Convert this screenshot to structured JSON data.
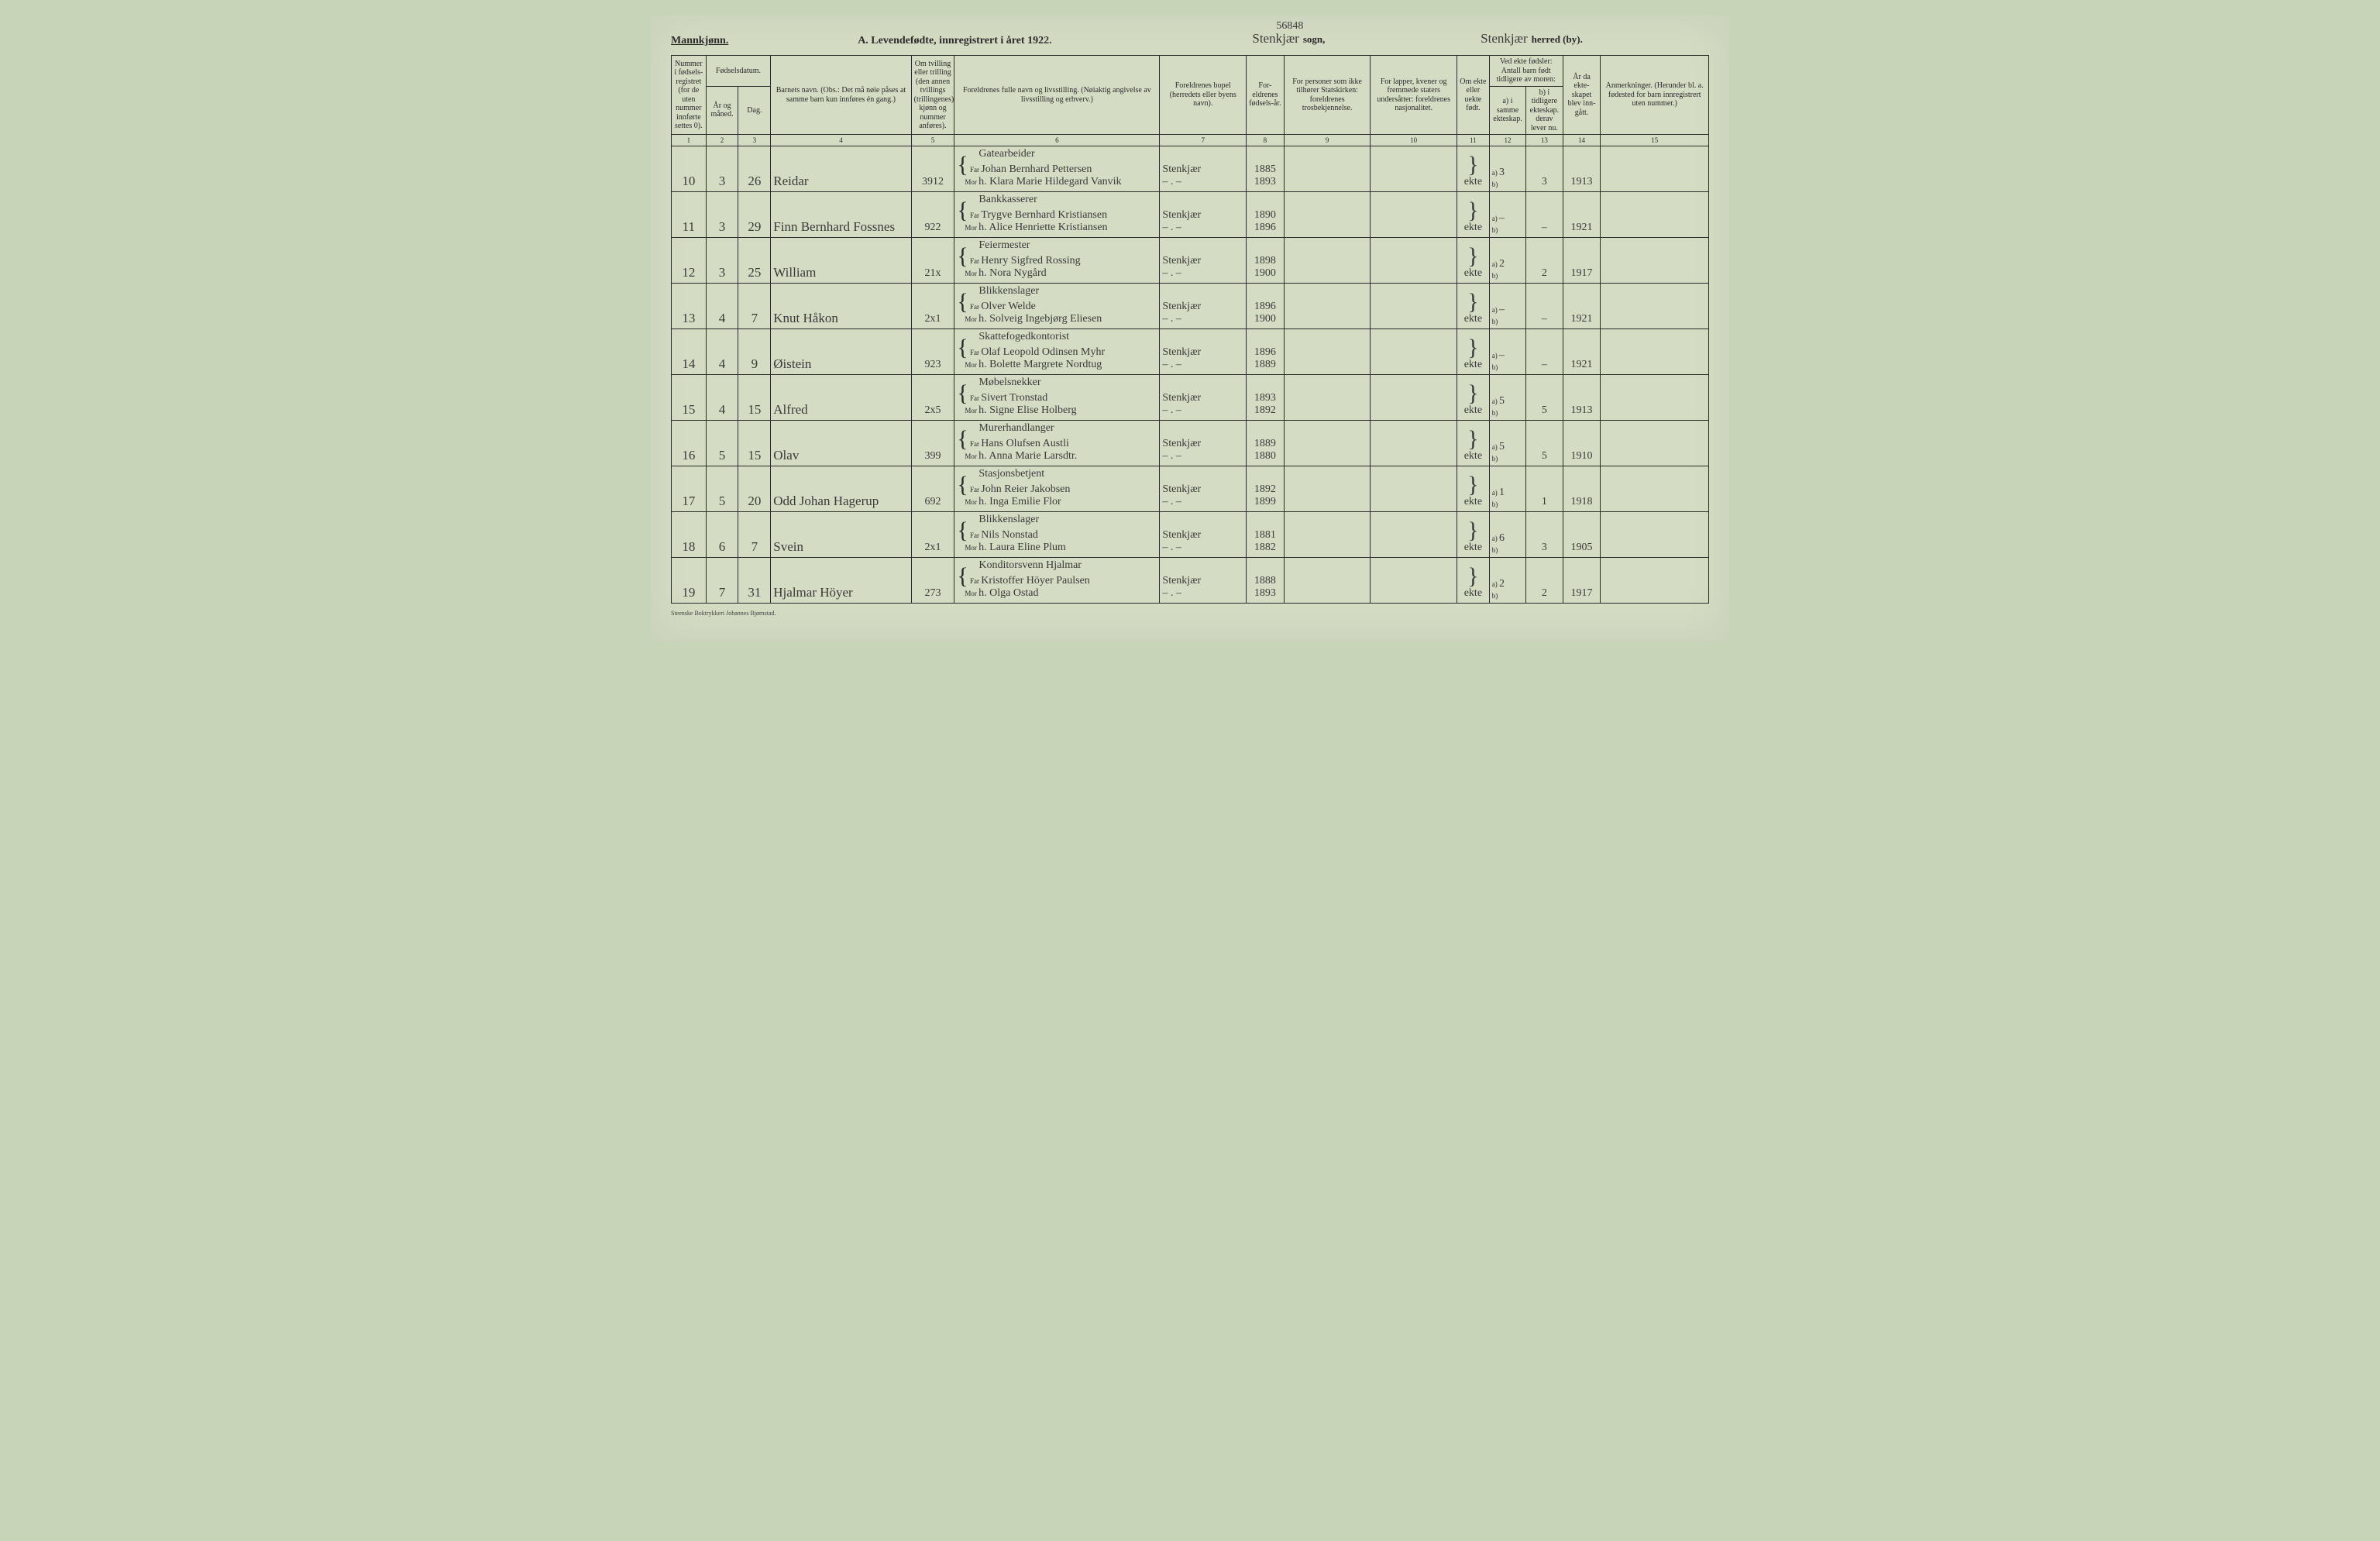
{
  "top_number": "56848",
  "header": {
    "gender": "Mannkjønn.",
    "title_a": "A.  Levendefødte, innregistrert i året 192",
    "year_suffix": "2.",
    "sogn_hand": "Stenkjær",
    "sogn_label": "sogn,",
    "herred_hand": "Stenkjær",
    "herred_label": "herred (by)."
  },
  "columns": {
    "1": "Nummer i fødsels-registret (for de uten nummer innførte settes 0).",
    "2_group": "Fødselsdatum.",
    "2": "År og måned.",
    "3": "Dag.",
    "4": "Barnets navn.\n(Obs.: Det må nøie påses at samme barn kun innføres én gang.)",
    "5": "Om tvilling eller trilling (den annen tvillings (trillingenes) kjønn og nummer anføres).",
    "6": "Foreldrenes fulle navn og livsstilling.\n(Nøiaktig angivelse av livsstilling og erhverv.)",
    "7": "Foreldrenes bopel\n(herredets eller byens navn).",
    "8": "For-eldrenes fødsels-år.",
    "9": "For personer som ikke tilhører Statskirken: foreldrenes trosbekjennelse.",
    "10": "For lapper, kvener og fremmede staters undersåtter: foreldrenes nasjonalitet.",
    "11": "Om ekte eller uekte født.",
    "12_group": "Ved ekte fødsler: Antall barn født tidligere av moren:",
    "12": "a) i samme ekteskap.",
    "13": "b) i tidligere ekteskap.  derav lever nu.",
    "14": "År da ekte-skapet blev inn-gått.",
    "15": "Anmerkninger.\n(Herunder bl. a. fødested for barn innregistrert uten nummer.)"
  },
  "colnums": [
    "1",
    "2",
    "3",
    "4",
    "5",
    "6",
    "7",
    "8",
    "9",
    "10",
    "11",
    "12",
    "13",
    "14",
    "15"
  ],
  "rows": [
    {
      "n": "10",
      "mo": "3",
      "d": "26",
      "name": "Reidar",
      "tw": "3912",
      "far_occ": "Gatearbeider",
      "far": "Johan Bernhard Pettersen",
      "mor": "h. Klara Marie Hildegard Vanvik",
      "bopel": "Stenkjær",
      "yrF": "1885",
      "yrM": "1893",
      "ekte": "ekte",
      "a": "3",
      "a2": "3",
      "marr": "1913"
    },
    {
      "n": "11",
      "mo": "3",
      "d": "29",
      "name": "Finn Bernhard Fossnes",
      "tw": "922",
      "far_occ": "Bankkasserer",
      "far": "Trygve Bernhard Kristiansen",
      "mor": "h. Alice Henriette Kristiansen",
      "bopel": "Stenkjær",
      "yrF": "1890",
      "yrM": "1896",
      "ekte": "ekte",
      "a": "–",
      "a2": "–",
      "marr": "1921"
    },
    {
      "n": "12",
      "mo": "3",
      "d": "25",
      "name": "William",
      "tw": "21x",
      "far_occ": "Feiermester",
      "far": "Henry Sigfred Rossing",
      "mor": "h. Nora Nygård",
      "bopel": "Stenkjær",
      "yrF": "1898",
      "yrM": "1900",
      "ekte": "ekte",
      "a": "2",
      "a2": "2",
      "marr": "1917"
    },
    {
      "n": "13",
      "mo": "4",
      "d": "7",
      "name": "Knut Håkon",
      "tw": "2x1",
      "far_occ": "Blikkenslager",
      "far": "Olver Welde",
      "mor": "h. Solveig Ingebjørg Eliesen",
      "bopel": "Stenkjær",
      "yrF": "1896",
      "yrM": "1900",
      "ekte": "ekte",
      "a": "–",
      "a2": "–",
      "marr": "1921"
    },
    {
      "n": "14",
      "mo": "4",
      "d": "9",
      "name": "Øistein",
      "tw": "923",
      "far_occ": "Skattefogedkontorist",
      "far": "Olaf Leopold Odinsen Myhr",
      "mor": "h. Bolette Margrete Nordtug",
      "bopel": "Stenkjær",
      "yrF": "1896",
      "yrM": "1889",
      "ekte": "ekte",
      "a": "–",
      "a2": "–",
      "marr": "1921"
    },
    {
      "n": "15",
      "mo": "4",
      "d": "15",
      "name": "Alfred",
      "tw": "2x5",
      "far_occ": "Møbelsnekker",
      "far": "Sivert Tronstad",
      "mor": "h. Signe Elise Holberg",
      "bopel": "Stenkjær",
      "yrF": "1893",
      "yrM": "1892",
      "ekte": "ekte",
      "a": "5",
      "a2": "5",
      "marr": "1913"
    },
    {
      "n": "16",
      "mo": "5",
      "d": "15",
      "name": "Olav",
      "tw": "399",
      "far_occ": "Murerhandlanger",
      "far": "Hans Olufsen Austli",
      "mor": "h. Anna Marie Larsdtr.",
      "bopel": "Stenkjær",
      "yrF": "1889",
      "yrM": "1880",
      "ekte": "ekte",
      "a": "5",
      "a2": "5",
      "marr": "1910"
    },
    {
      "n": "17",
      "mo": "5",
      "d": "20",
      "name": "Odd Johan Hagerup",
      "tw": "692",
      "far_occ": "Stasjonsbetjent",
      "far": "John Reier Jakobsen",
      "mor": "h. Inga Emilie Flor",
      "bopel": "Stenkjær",
      "yrF": "1892",
      "yrM": "1899",
      "ekte": "ekte",
      "a": "1",
      "a2": "1",
      "marr": "1918"
    },
    {
      "n": "18",
      "mo": "6",
      "d": "7",
      "name": "Svein",
      "tw": "2x1",
      "far_occ": "Blikkenslager",
      "far": "Nils Nonstad",
      "mor": "h. Laura Eline Plum",
      "bopel": "Stenkjær",
      "yrF": "1881",
      "yrM": "1882",
      "ekte": "ekte",
      "a": "6",
      "a2": "3",
      "marr": "1905"
    },
    {
      "n": "19",
      "mo": "7",
      "d": "31",
      "name": "Hjalmar Höyer",
      "tw": "273",
      "far_occ": "Konditorsvenn Hjalmar",
      "far": "Kristoffer Höyer Paulsen",
      "mor": "h. Olga Ostad",
      "bopel": "Stenkjær",
      "yrF": "1888",
      "yrM": "1893",
      "ekte": "ekte",
      "a": "2",
      "a2": "2",
      "marr": "1917"
    }
  ],
  "footer": "Steenske Boktrykkeri Johannes Bjørnstad."
}
